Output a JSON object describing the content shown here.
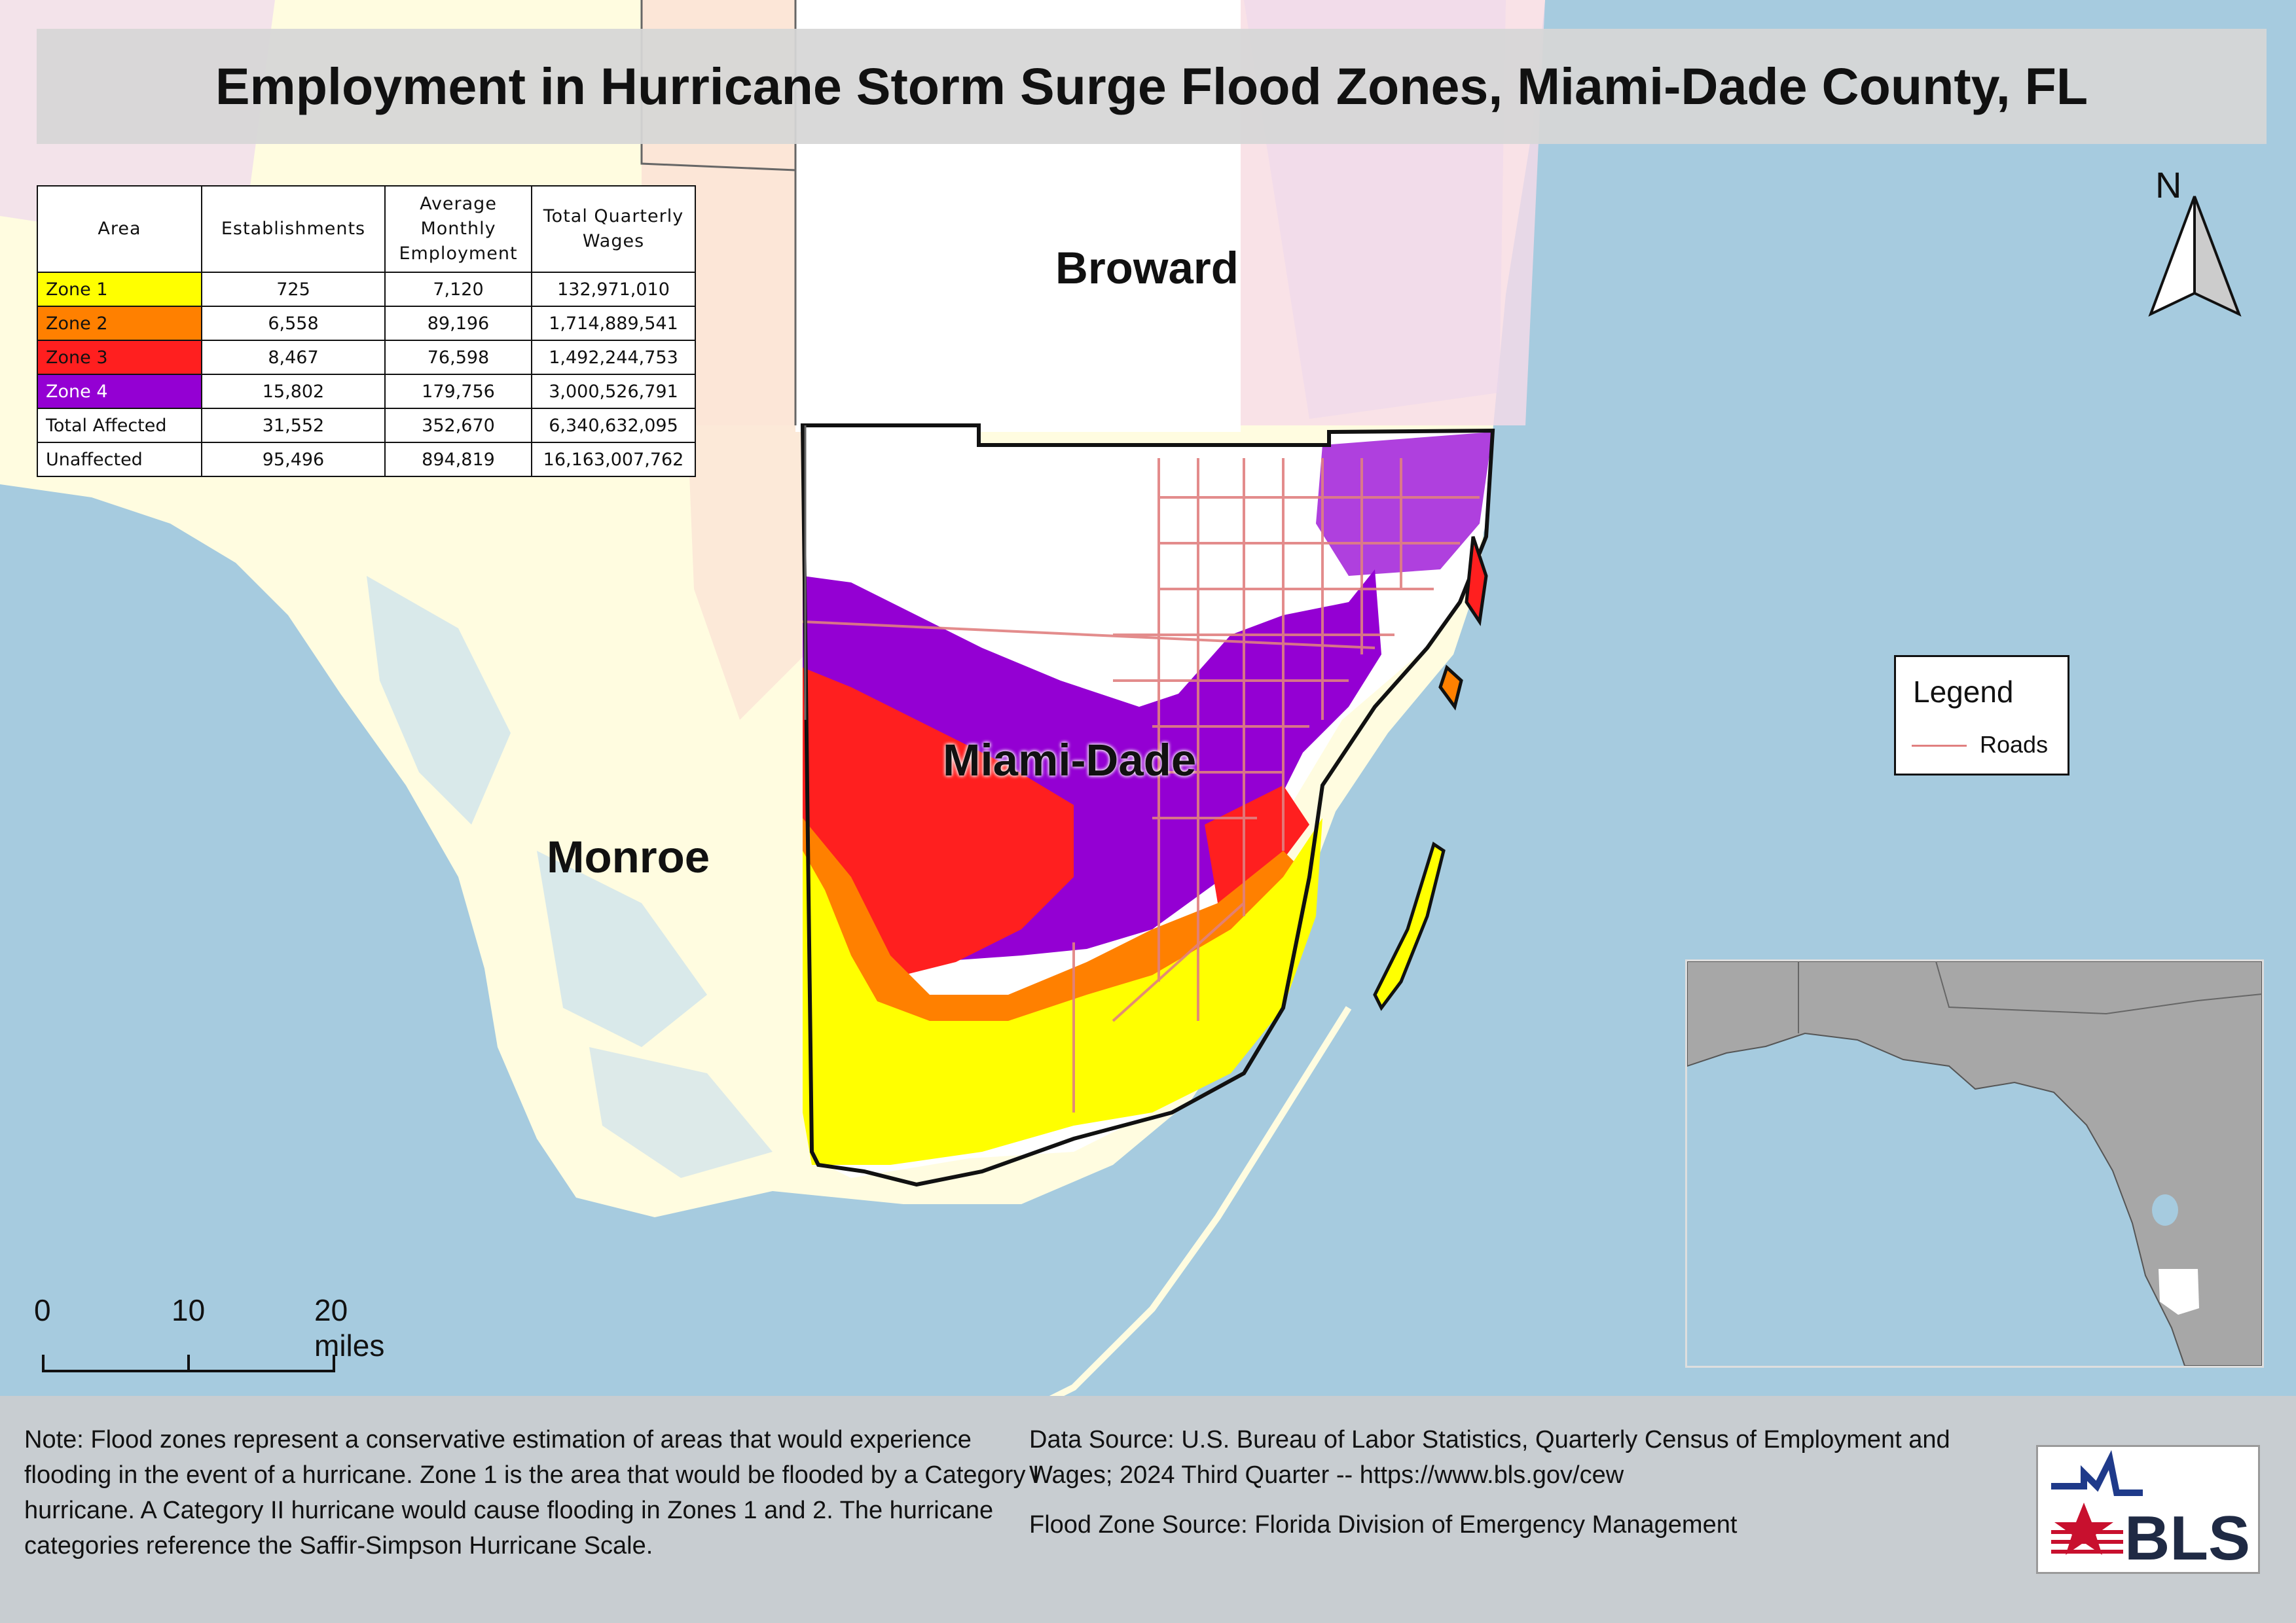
{
  "title": "Employment in Hurricane Storm Surge Flood Zones, Miami-Dade County, FL",
  "table": {
    "headers": [
      "Area",
      "Establishments",
      "Average Monthly Employment",
      "Total Quarterly Wages"
    ],
    "rows": [
      {
        "area": "Zone 1",
        "establishments": "725",
        "employment": "7,120",
        "wages": "132,971,010",
        "color": "#ffff00",
        "text_color": "#111111"
      },
      {
        "area": "Zone 2",
        "establishments": "6,558",
        "employment": "89,196",
        "wages": "1,714,889,541",
        "color": "#ff8000",
        "text_color": "#111111"
      },
      {
        "area": "Zone 3",
        "establishments": "8,467",
        "employment": "76,598",
        "wages": "1,492,244,753",
        "color": "#ff1f1f",
        "text_color": "#111111"
      },
      {
        "area": "Zone 4",
        "establishments": "15,802",
        "employment": "179,756",
        "wages": "3,000,526,791",
        "color": "#9400d3",
        "text_color": "#ffffff"
      },
      {
        "area": "Total Affected",
        "establishments": "31,552",
        "employment": "352,670",
        "wages": "6,340,632,095",
        "color": "#ffffff",
        "text_color": "#111111"
      },
      {
        "area": "Unaffected",
        "establishments": "95,496",
        "employment": "894,819",
        "wages": "16,163,007,762",
        "color": "#ffffff",
        "text_color": "#111111"
      }
    ]
  },
  "counties": {
    "broward": "Broward",
    "miami_dade": "Miami-Dade",
    "monroe": "Monroe"
  },
  "north_label": "N",
  "legend": {
    "title": "Legend",
    "roads_label": "Roads",
    "roads_color": "#e08080"
  },
  "scale_bar": {
    "labels": [
      "0",
      "10",
      "20 miles"
    ]
  },
  "colors": {
    "water": "#a6cbdf",
    "land": "#fffce0",
    "zone1": "#ffff00",
    "zone2": "#ff8000",
    "zone3": "#ff1f1f",
    "zone4": "#9400d3",
    "inset_land": "#a7a7a7",
    "footer": "#c8cdd1"
  },
  "footer": {
    "note": "Note: Flood zones represent a conservative estimation of areas that would experience flooding in the event of a hurricane. Zone 1 is the area that would be flooded by a Category I hurricane. A Category II hurricane would cause flooding in Zones 1 and 2. The hurricane categories reference the Saffir-Simpson Hurricane Scale.",
    "data_source": "Data Source: U.S. Bureau of Labor Statistics, Quarterly Census of Employment and Wages; 2024 Third Quarter -- https://www.bls.gov/cew",
    "flood_source": "Flood Zone Source: Florida Division of Emergency Management"
  },
  "logo_text": "BLS"
}
